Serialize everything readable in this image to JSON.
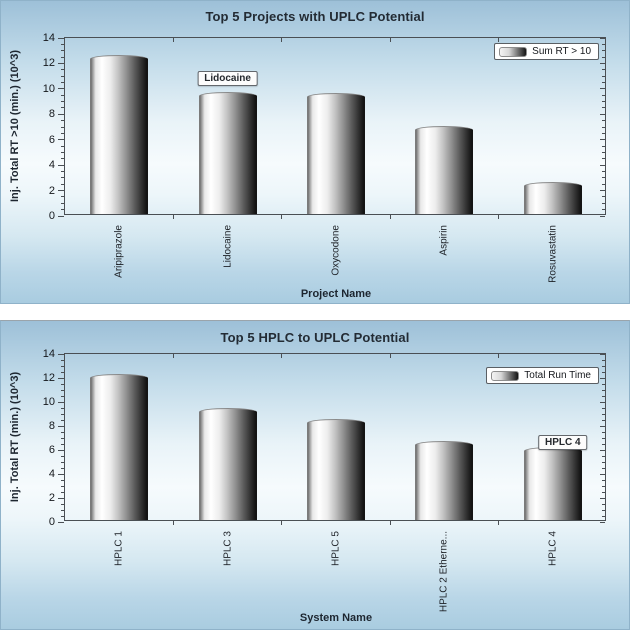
{
  "chart_data": [
    {
      "type": "bar",
      "title": "Top 5 Projects with UPLC Potential",
      "categories": [
        "Aripiprazole",
        "Lidocaine",
        "Oxycodone",
        "Aspirin",
        "Rosuvastatin"
      ],
      "values": [
        12.5,
        9.6,
        9.5,
        6.9,
        2.5
      ],
      "xlabel": "Project Name",
      "ylabel": "Inj. Total RT >10 (min.) (10^3)",
      "ylim": [
        0,
        14
      ],
      "ytick_step": 2,
      "yminor_step": 0.5,
      "grid": false,
      "legend": {
        "label": "Sum RT > 10",
        "position": "top-right"
      },
      "tooltip": {
        "label": "Lidocaine",
        "category_index": 1
      }
    },
    {
      "type": "bar",
      "title": "Top 5 HPLC to UPLC Potential",
      "categories": [
        "HPLC 1",
        "HPLC 3",
        "HPLC 5",
        "HPLC 2 Etherne...",
        "HPLC 4"
      ],
      "values": [
        12.2,
        9.3,
        8.4,
        6.6,
        6.1
      ],
      "xlabel": "System Name",
      "ylabel": "Inj. Total RT (min.) (10^3)",
      "ylim": [
        0,
        14
      ],
      "ytick_step": 2,
      "yminor_step": 0.5,
      "grid": false,
      "legend": {
        "label": "Total Run Time",
        "position": "top-right"
      },
      "tooltip": {
        "label": "HPLC 4",
        "category_index": 4
      }
    }
  ],
  "colors": {
    "panel_border": "#8fb2c9",
    "bg_top": "#9dc0d8",
    "bg_middle": "#f6fbfd",
    "bg_bottom": "#a9cce0",
    "axis_line": "#4a4f54",
    "title_text": "#232b34",
    "bar_edge": "#6f6f6f",
    "bar_highlight": "#ffffff",
    "bar_shadow": "#141414",
    "legend_bg": "#ffffff",
    "tooltip_bg": "#fcfcfc"
  }
}
